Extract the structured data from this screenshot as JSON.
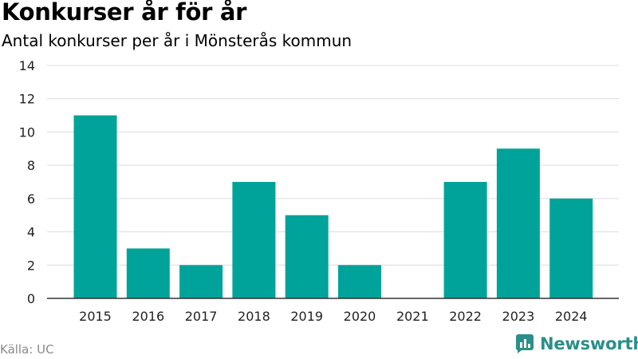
{
  "header": {
    "title": "Konkurser år för år",
    "subtitle": "Antal konkurser per år i Mönsterås kommun"
  },
  "footer": {
    "source": "Källa: UC",
    "brand": "Newsworthy"
  },
  "colors": {
    "bar": "#00A39A",
    "grid": "#dcdcdc",
    "axis": "#333333",
    "brand": "#2a8f8a"
  },
  "chart_data": {
    "type": "bar",
    "categories": [
      "2015",
      "2016",
      "2017",
      "2018",
      "2019",
      "2020",
      "2021",
      "2022",
      "2023",
      "2024"
    ],
    "values": [
      11,
      3,
      2,
      7,
      5,
      2,
      0,
      7,
      9,
      6
    ],
    "ylim": [
      0,
      14
    ],
    "yticks": [
      0,
      2,
      4,
      6,
      8,
      10,
      12,
      14
    ],
    "grid": true,
    "legend": "none"
  }
}
